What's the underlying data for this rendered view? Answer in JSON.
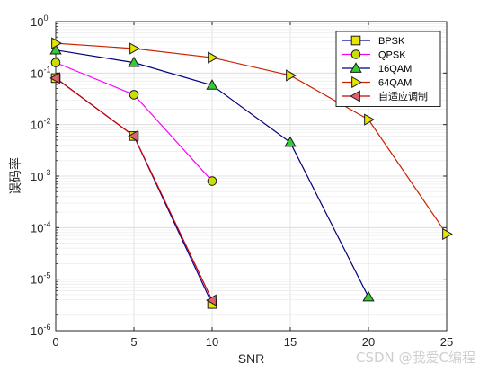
{
  "chart_data": {
    "type": "line",
    "title": "",
    "xlabel": "SNR",
    "ylabel": "误码率",
    "xlim": [
      0,
      25
    ],
    "ylim": [
      1e-06,
      1
    ],
    "yscale": "log",
    "grid": true,
    "legend_position": "top-right",
    "x_ticks": [
      0,
      5,
      10,
      15,
      20,
      25
    ],
    "x_tick_labels": [
      "0",
      "5",
      "10",
      "15",
      "20",
      "25"
    ],
    "y_ticks": [
      1e-06,
      1e-05,
      0.0001,
      0.001,
      0.01,
      0.1,
      1
    ],
    "y_tick_base": "10",
    "y_tick_exponents": [
      "-6",
      "-5",
      "-4",
      "-3",
      "-2",
      "-1",
      "0"
    ],
    "series": [
      {
        "name": "BPSK",
        "color": "#0000a0",
        "marker": "square",
        "marker_fill": "#e6e600",
        "x": [
          0,
          5,
          10
        ],
        "y": [
          0.08,
          0.006,
          3.3e-06
        ]
      },
      {
        "name": "QPSK",
        "color": "#ff00ff",
        "marker": "circle",
        "marker_fill": "#c8e000",
        "x": [
          0,
          5,
          10
        ],
        "y": [
          0.16,
          0.038,
          0.0008
        ]
      },
      {
        "name": "16QAM",
        "color": "#000080",
        "marker": "triangle-up",
        "marker_fill": "#33cc33",
        "x": [
          0,
          5,
          10,
          15,
          20
        ],
        "y": [
          0.28,
          0.16,
          0.058,
          0.0045,
          4.5e-06
        ]
      },
      {
        "name": "64QAM",
        "color": "#cc2200",
        "marker": "triangle-right",
        "marker_fill": "#e6e600",
        "x": [
          0,
          5,
          10,
          15,
          20,
          25
        ],
        "y": [
          0.38,
          0.3,
          0.2,
          0.09,
          0.0125,
          7.5e-05
        ]
      },
      {
        "name": "自适应调制",
        "color": "#cc0000",
        "marker": "triangle-left",
        "marker_fill": "#e06070",
        "x": [
          0,
          5,
          10
        ],
        "y": [
          0.08,
          0.006,
          3.9e-06
        ]
      }
    ]
  },
  "watermark": "CSDN @我爱C编程"
}
